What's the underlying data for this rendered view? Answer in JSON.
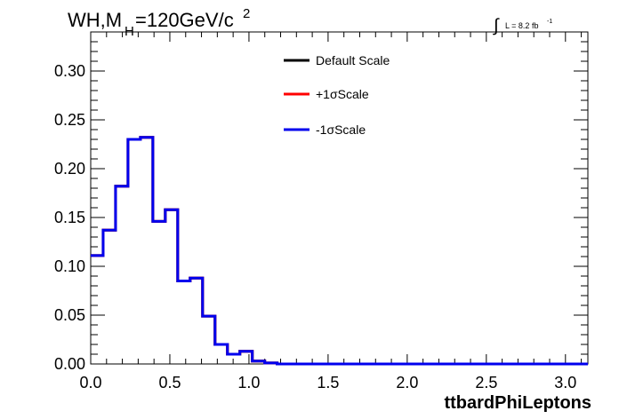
{
  "chart_data": {
    "type": "line",
    "title_main": "WH,M",
    "title_sub": "H",
    "title_rest": "=120GeV/c",
    "title_sup": "2",
    "lumi_integral": "∫",
    "lumi_text": "L = 8.2 fb",
    "lumi_sup": "-1",
    "xlabel": "ttbardPhiLeptons",
    "xlim": [
      0.0,
      3.1416
    ],
    "ylim": [
      0.0,
      0.34
    ],
    "x_ticks": [
      "0.0",
      "0.5",
      "1.0",
      "1.5",
      "2.0",
      "2.5",
      "3.0"
    ],
    "y_ticks": [
      "0.00",
      "0.05",
      "0.10",
      "0.15",
      "0.20",
      "0.25",
      "0.30"
    ],
    "legend_position": "top-center",
    "bin_edges": [
      0.0,
      0.0785,
      0.1571,
      0.2356,
      0.3142,
      0.3927,
      0.4712,
      0.5498,
      0.6283,
      0.7069,
      0.7854,
      0.8639,
      0.9425,
      1.021,
      1.0996,
      1.1781,
      1.2566,
      1.3352,
      1.4137,
      1.4923,
      1.5708,
      1.6493,
      1.7279,
      1.8064,
      1.885,
      1.9635,
      2.042,
      2.1206,
      2.1991,
      2.2777,
      2.3562,
      2.4347,
      2.5133,
      2.5918,
      2.6704,
      2.7489,
      2.8274,
      2.906,
      2.9845,
      3.0631,
      3.1416
    ],
    "series": [
      {
        "name": "Default Scale",
        "color": "#000000",
        "values": [
          0.111,
          0.137,
          0.182,
          0.23,
          0.232,
          0.146,
          0.158,
          0.085,
          0.088,
          0.049,
          0.02,
          0.01,
          0.013,
          0.003,
          0.001,
          0.0,
          0.0,
          0.0,
          0.0,
          0.0,
          0.0,
          0.0,
          0.0,
          0.0,
          0.0,
          0.0,
          0.0,
          0.0,
          0.0,
          0.0,
          0.0,
          0.0,
          0.0,
          0.0,
          0.0,
          0.0,
          0.0,
          0.0,
          0.0,
          0.0
        ]
      },
      {
        "name": "+1σScale",
        "color": "#ff0000",
        "values": [
          0.111,
          0.137,
          0.182,
          0.23,
          0.232,
          0.146,
          0.158,
          0.085,
          0.088,
          0.049,
          0.02,
          0.01,
          0.013,
          0.003,
          0.001,
          0.0,
          0.0,
          0.0,
          0.0,
          0.0,
          0.0,
          0.0,
          0.0,
          0.0,
          0.0,
          0.0,
          0.0,
          0.0,
          0.0,
          0.0,
          0.0,
          0.0,
          0.0,
          0.0,
          0.0,
          0.0,
          0.0,
          0.0,
          0.0,
          0.0
        ]
      },
      {
        "name": "-1σScale",
        "color": "#0000ee",
        "values": [
          0.111,
          0.137,
          0.182,
          0.23,
          0.232,
          0.146,
          0.158,
          0.085,
          0.088,
          0.049,
          0.02,
          0.01,
          0.013,
          0.003,
          0.001,
          0.0,
          0.0,
          0.0,
          0.0,
          0.0,
          0.0,
          0.0,
          0.0,
          0.0,
          0.0,
          0.0,
          0.0,
          0.0,
          0.0,
          0.0,
          0.0,
          0.0,
          0.0,
          0.0,
          0.0,
          0.0,
          0.0,
          0.0,
          0.0,
          0.0
        ]
      }
    ]
  }
}
